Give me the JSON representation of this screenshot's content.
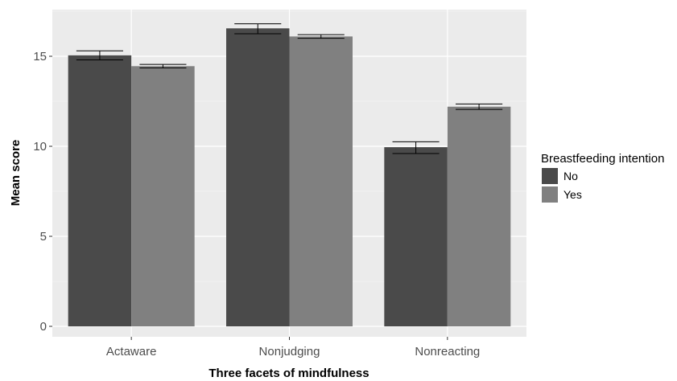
{
  "chart_data": {
    "type": "bar",
    "xlabel": "Three facets of mindfulness",
    "ylabel": "Mean score",
    "categories": [
      "Actaware",
      "Nonjudging",
      "Nonreacting"
    ],
    "ylim": [
      0,
      17.5
    ],
    "yticks": [
      0,
      5,
      10,
      15
    ],
    "grid": true,
    "legend": {
      "title": "Breastfeeding intention",
      "placement": "right"
    },
    "series": [
      {
        "name": "No",
        "color": "#4a4a4a",
        "values": [
          15.05,
          16.55,
          9.95
        ],
        "error_low": [
          14.8,
          16.25,
          9.6
        ],
        "error_high": [
          15.3,
          16.8,
          10.25
        ]
      },
      {
        "name": "Yes",
        "color": "#808080",
        "values": [
          14.45,
          16.1,
          12.2
        ],
        "error_low": [
          14.35,
          16.0,
          12.05
        ],
        "error_high": [
          14.55,
          16.2,
          12.35
        ]
      }
    ]
  }
}
